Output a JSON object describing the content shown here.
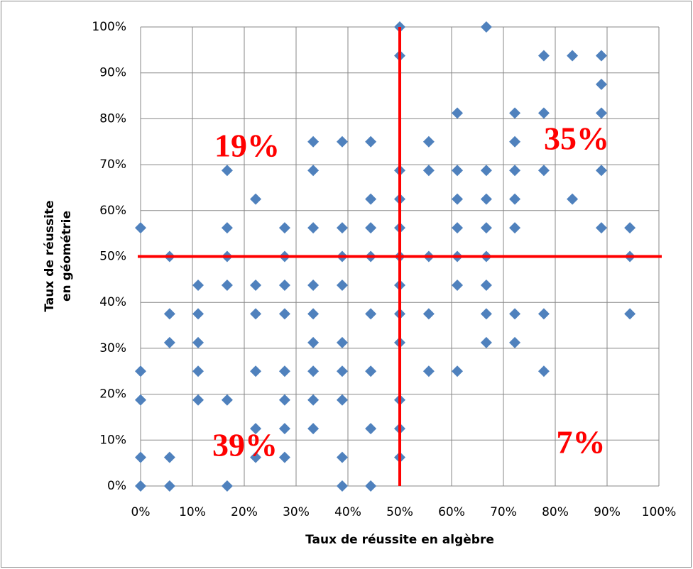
{
  "chart_data": {
    "type": "scatter",
    "x_label": "Taux de réussite en algèbre",
    "y_label": [
      "Taux de réussite",
      "en géométrie"
    ],
    "color": "#4f81bd",
    "x": [
      0,
      0,
      0,
      0,
      0,
      5.6,
      5.6,
      5.6,
      5.6,
      5.6,
      11.1,
      11.1,
      11.1,
      11.1,
      11.1,
      16.7,
      16.7,
      16.7,
      16.7,
      16.7,
      16.7,
      22.2,
      22.2,
      22.2,
      22.2,
      22.2,
      22.2,
      27.8,
      27.8,
      27.8,
      27.8,
      27.8,
      27.8,
      27.8,
      27.8,
      33.3,
      33.3,
      33.3,
      33.3,
      33.3,
      33.3,
      33.3,
      33.3,
      33.3,
      38.9,
      38.9,
      38.9,
      38.9,
      38.9,
      38.9,
      38.9,
      38.9,
      38.9,
      44.4,
      44.4,
      44.4,
      44.4,
      44.4,
      44.4,
      44.4,
      44.4,
      50,
      50,
      50,
      50,
      50,
      50,
      50,
      50,
      50,
      50,
      50,
      50,
      55.6,
      55.6,
      55.6,
      55.6,
      55.6,
      61.1,
      61.1,
      61.1,
      61.1,
      61.1,
      61.1,
      61.1,
      66.7,
      66.7,
      66.7,
      66.7,
      66.7,
      66.7,
      66.7,
      66.7,
      72.2,
      72.2,
      72.2,
      72.2,
      72.2,
      72.2,
      72.2,
      77.8,
      77.8,
      77.8,
      77.8,
      77.8,
      83.3,
      83.3,
      88.9,
      88.9,
      88.9,
      88.9,
      88.9,
      94.4,
      94.4,
      94.4
    ],
    "values": [
      56.25,
      25,
      18.75,
      6.25,
      0,
      50,
      37.5,
      31.25,
      6.25,
      0,
      43.75,
      37.5,
      31.25,
      25,
      18.75,
      68.75,
      56.25,
      50,
      43.75,
      18.75,
      0,
      62.5,
      43.75,
      37.5,
      25,
      12.5,
      6.25,
      56.25,
      50,
      43.75,
      37.5,
      25,
      18.75,
      12.5,
      6.25,
      75,
      68.75,
      56.25,
      43.75,
      37.5,
      31.25,
      25,
      18.75,
      12.5,
      75,
      56.25,
      50,
      43.75,
      31.25,
      25,
      18.75,
      6.25,
      0,
      75,
      62.5,
      56.25,
      50,
      37.5,
      25,
      12.5,
      0,
      100,
      93.75,
      68.75,
      62.5,
      56.25,
      50,
      43.75,
      37.5,
      31.25,
      18.75,
      12.5,
      6.25,
      75,
      68.75,
      50,
      37.5,
      25,
      81.25,
      68.75,
      62.5,
      56.25,
      50,
      43.75,
      25,
      100,
      68.75,
      62.5,
      56.25,
      50,
      43.75,
      37.5,
      31.25,
      81.25,
      75,
      68.75,
      62.5,
      56.25,
      37.5,
      31.25,
      93.75,
      81.25,
      68.75,
      37.5,
      25,
      93.75,
      62.5,
      93.75,
      87.5,
      81.25,
      68.75,
      56.25,
      56.25,
      50,
      37.5
    ],
    "xlim": [
      0,
      100
    ],
    "ylim": [
      0,
      100
    ],
    "xticks": [
      {
        "value": 0,
        "label": "0%"
      },
      {
        "value": 10,
        "label": "10%"
      },
      {
        "value": 20,
        "label": "20%"
      },
      {
        "value": 30,
        "label": "30%"
      },
      {
        "value": 40,
        "label": "40%"
      },
      {
        "value": 50,
        "label": "50%"
      },
      {
        "value": 60,
        "label": "60%"
      },
      {
        "value": 70,
        "label": "70%"
      },
      {
        "value": 80,
        "label": "80%"
      },
      {
        "value": 90,
        "label": "90%"
      },
      {
        "value": 100,
        "label": "100%"
      }
    ],
    "yticks": [
      {
        "value": 0,
        "label": "0%"
      },
      {
        "value": 10,
        "label": "10%"
      },
      {
        "value": 20,
        "label": "20%"
      },
      {
        "value": 30,
        "label": "30%"
      },
      {
        "value": 40,
        "label": "40%"
      },
      {
        "value": 50,
        "label": "50%"
      },
      {
        "value": 60,
        "label": "60%"
      },
      {
        "value": 70,
        "label": "70%"
      },
      {
        "value": 80,
        "label": "80%"
      },
      {
        "value": 90,
        "label": "90%"
      },
      {
        "value": 100,
        "label": "100%"
      }
    ],
    "grid": true,
    "reference_lines": {
      "x": 50,
      "y": 50,
      "color": "#ff0000"
    },
    "annotations": [
      "19%",
      "35%",
      "39%",
      "7%"
    ]
  }
}
